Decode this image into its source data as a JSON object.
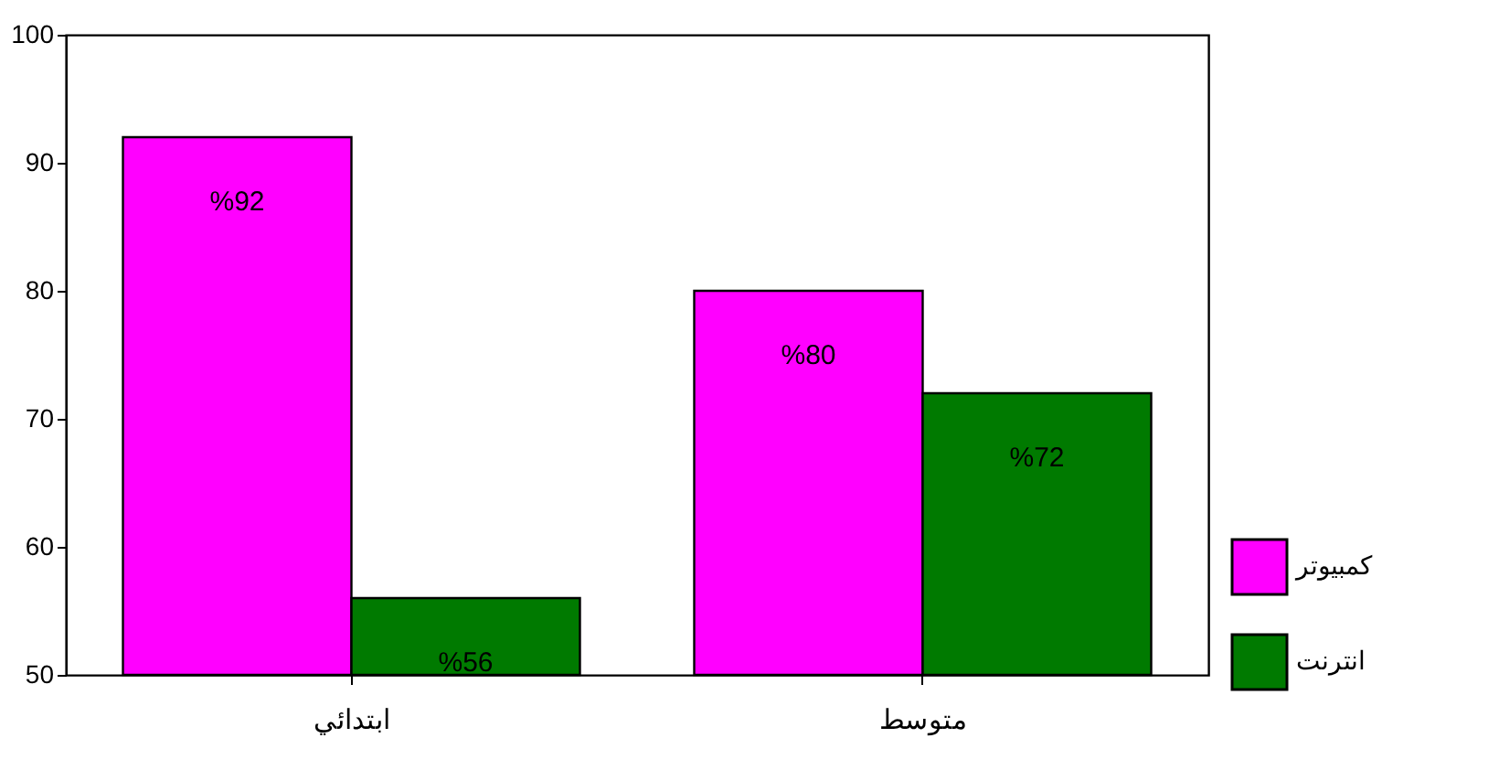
{
  "chart_data": {
    "type": "bar",
    "categories": [
      "ابتدائي",
      "متوسط"
    ],
    "series": [
      {
        "name": "كمبيوتر",
        "color": "#ff00ff",
        "values": [
          92,
          80
        ],
        "value_labels": [
          "%92",
          "%80"
        ]
      },
      {
        "name": "انترنت",
        "color": "#007a00",
        "values": [
          56,
          72
        ],
        "value_labels": [
          "%56",
          "%72"
        ]
      }
    ],
    "ylim": [
      50,
      100
    ],
    "yticks": [
      50,
      60,
      70,
      80,
      90,
      100
    ],
    "grid": false,
    "legend": "right"
  }
}
